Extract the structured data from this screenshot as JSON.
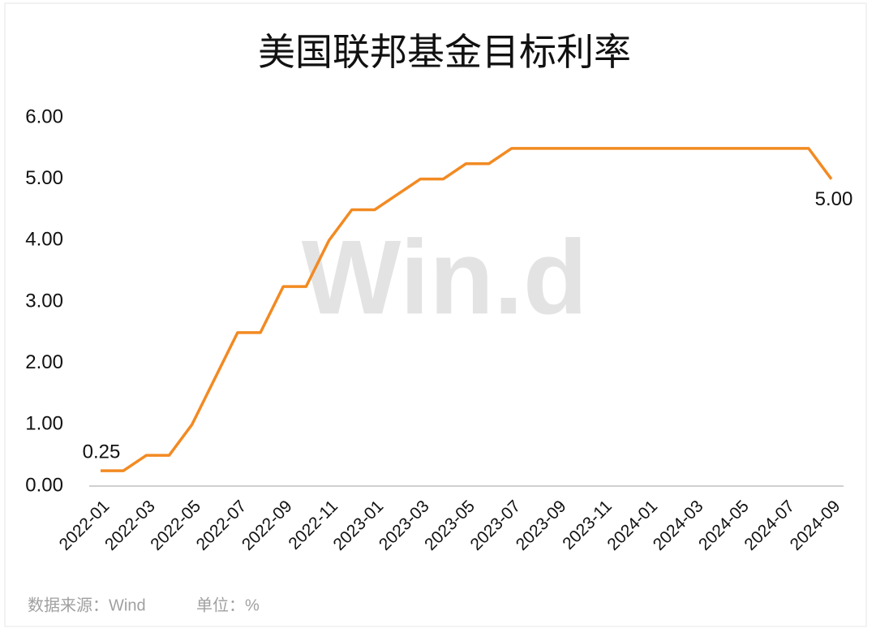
{
  "chart_data": {
    "type": "line",
    "title": "美国联邦基金目标利率",
    "watermark": "Win.d",
    "source": "数据来源：Wind",
    "unit": "单位：%",
    "categories": [
      "2022-01",
      null,
      "2022-03",
      null,
      "2022-05",
      null,
      "2022-07",
      null,
      "2022-09",
      null,
      "2022-11",
      null,
      "2023-01",
      null,
      "2023-03",
      null,
      "2023-05",
      null,
      "2023-07",
      null,
      "2023-09",
      null,
      "2023-11",
      null,
      "2024-01",
      null,
      "2024-03",
      null,
      "2024-05",
      null,
      "2024-07",
      null,
      "2024-09"
    ],
    "values": [
      0.25,
      0.25,
      0.5,
      0.5,
      1.0,
      1.75,
      2.5,
      2.5,
      3.25,
      3.25,
      4.0,
      4.5,
      4.5,
      4.75,
      5.0,
      5.0,
      5.25,
      5.25,
      5.5,
      5.5,
      5.5,
      5.5,
      5.5,
      5.5,
      5.5,
      5.5,
      5.5,
      5.5,
      5.5,
      5.5,
      5.5,
      5.5,
      5.0
    ],
    "value_labels": [
      "0.25",
      null,
      null,
      null,
      null,
      null,
      null,
      null,
      null,
      null,
      null,
      null,
      null,
      null,
      null,
      null,
      null,
      null,
      null,
      null,
      null,
      null,
      null,
      null,
      null,
      null,
      null,
      null,
      null,
      null,
      null,
      null,
      "5.00"
    ],
    "color": "#f28a22",
    "ylim": [
      0,
      6
    ],
    "yticks": [
      {
        "value": 0,
        "label": "0.00"
      },
      {
        "value": 1,
        "label": "1.00"
      },
      {
        "value": 2,
        "label": "2.00"
      },
      {
        "value": 3,
        "label": "3.00"
      },
      {
        "value": 4,
        "label": "4.00"
      },
      {
        "value": 5,
        "label": "5.00"
      },
      {
        "value": 6,
        "label": "6.00"
      }
    ],
    "grid": false
  }
}
